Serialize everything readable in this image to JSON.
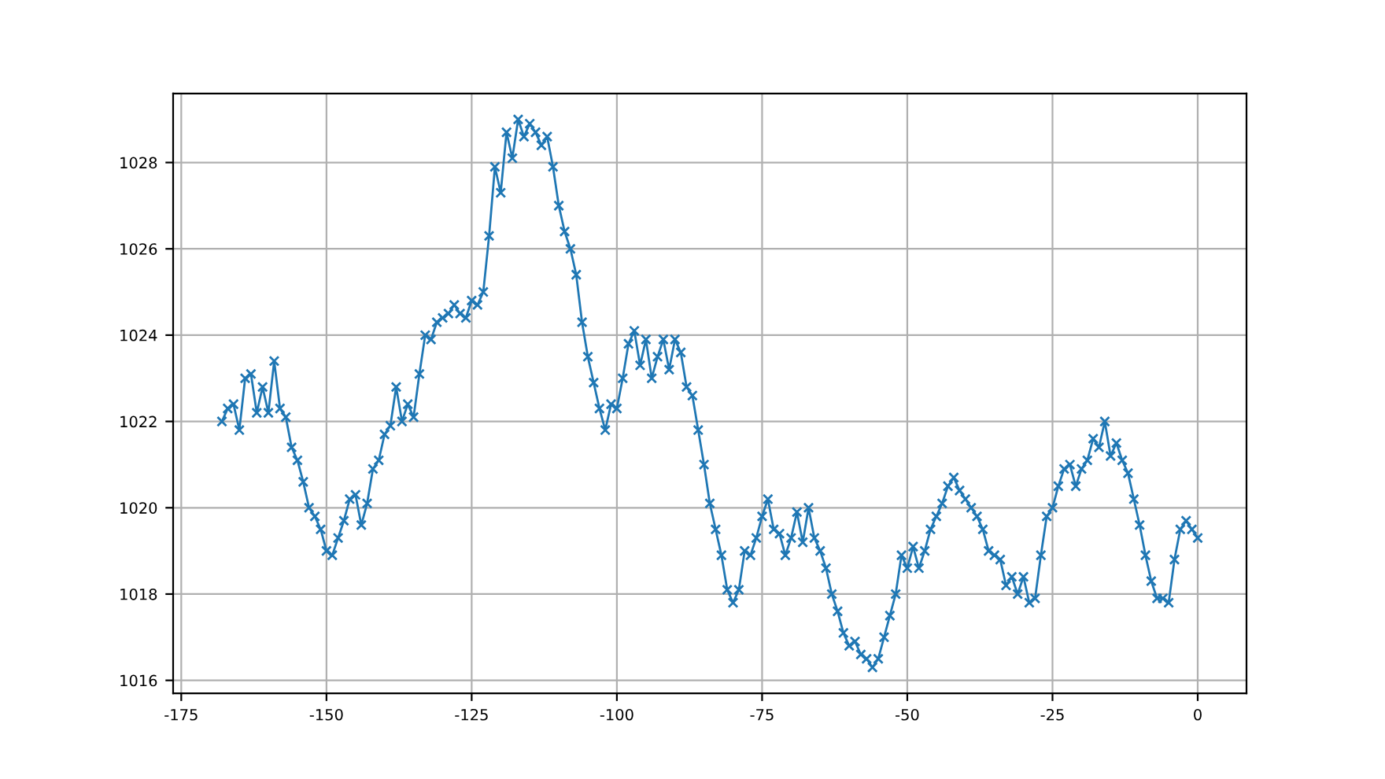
{
  "chart_data": {
    "type": "line",
    "marker": "cross",
    "grid": true,
    "line_style": "solid",
    "xlim": [
      -176.4,
      8.4
    ],
    "xticks": [
      -175,
      -150,
      -125,
      -100,
      -75,
      -50,
      -25,
      0
    ],
    "ylim": [
      1015.7,
      1029.6
    ],
    "yticks": [
      1016,
      1018,
      1020,
      1022,
      1024,
      1026,
      1028
    ],
    "x": [
      -168,
      -167,
      -166,
      -165,
      -164,
      -163,
      -162,
      -161,
      -160,
      -159,
      -158,
      -157,
      -156,
      -155,
      -154,
      -153,
      -152,
      -151,
      -150,
      -149,
      -148,
      -147,
      -146,
      -145,
      -144,
      -143,
      -142,
      -141,
      -140,
      -139,
      -138,
      -137,
      -136,
      -135,
      -134,
      -133,
      -132,
      -131,
      -130,
      -129,
      -128,
      -127,
      -126,
      -125,
      -124,
      -123,
      -122,
      -121,
      -120,
      -119,
      -118,
      -117,
      -116,
      -115,
      -114,
      -113,
      -112,
      -111,
      -110,
      -109,
      -108,
      -107,
      -106,
      -105,
      -104,
      -103,
      -102,
      -101,
      -100,
      -99,
      -98,
      -97,
      -96,
      -95,
      -94,
      -93,
      -92,
      -91,
      -90,
      -89,
      -88,
      -87,
      -86,
      -85,
      -84,
      -83,
      -82,
      -81,
      -80,
      -79,
      -78,
      -77,
      -76,
      -75,
      -74,
      -73,
      -72,
      -71,
      -70,
      -69,
      -68,
      -67,
      -66,
      -65,
      -64,
      -63,
      -62,
      -61,
      -60,
      -59,
      -58,
      -57,
      -56,
      -55,
      -54,
      -53,
      -52,
      -51,
      -50,
      -49,
      -48,
      -47,
      -46,
      -45,
      -44,
      -43,
      -42,
      -41,
      -40,
      -39,
      -38,
      -37,
      -36,
      -35,
      -34,
      -33,
      -32,
      -31,
      -30,
      -29,
      -28,
      -27,
      -26,
      -25,
      -24,
      -23,
      -22,
      -21,
      -20,
      -19,
      -18,
      -17,
      -16,
      -15,
      -14,
      -13,
      -12,
      -11,
      -10,
      -9,
      -8,
      -7,
      -6,
      -5,
      -4,
      -3,
      -2,
      -1,
      0
    ],
    "series": [
      {
        "color": "#1f77b4",
        "values": [
          1022.0,
          1022.3,
          1022.4,
          1021.8,
          1023.0,
          1023.1,
          1022.2,
          1022.8,
          1022.2,
          1023.4,
          1022.3,
          1022.1,
          1021.4,
          1021.1,
          1020.6,
          1020.0,
          1019.8,
          1019.5,
          1019.0,
          1018.9,
          1019.3,
          1019.7,
          1020.2,
          1020.3,
          1019.6,
          1020.1,
          1020.9,
          1021.1,
          1021.7,
          1021.9,
          1022.8,
          1022.0,
          1022.4,
          1022.1,
          1023.1,
          1024.0,
          1023.9,
          1024.3,
          1024.4,
          1024.5,
          1024.7,
          1024.5,
          1024.4,
          1024.8,
          1024.7,
          1025.0,
          1026.3,
          1027.9,
          1027.3,
          1028.7,
          1028.1,
          1029.0,
          1028.6,
          1028.9,
          1028.7,
          1028.4,
          1028.6,
          1027.9,
          1027.0,
          1026.4,
          1026.0,
          1025.4,
          1024.3,
          1023.5,
          1022.9,
          1022.3,
          1021.8,
          1022.4,
          1022.3,
          1023.0,
          1023.8,
          1024.1,
          1023.3,
          1023.9,
          1023.0,
          1023.5,
          1023.9,
          1023.2,
          1023.9,
          1023.6,
          1022.8,
          1022.6,
          1021.8,
          1021.0,
          1020.1,
          1019.5,
          1018.9,
          1018.1,
          1017.8,
          1018.1,
          1019.0,
          1018.9,
          1019.3,
          1019.8,
          1020.2,
          1019.5,
          1019.4,
          1018.9,
          1019.3,
          1019.9,
          1019.2,
          1020.0,
          1019.3,
          1019.0,
          1018.6,
          1018.0,
          1017.6,
          1017.1,
          1016.8,
          1016.9,
          1016.6,
          1016.5,
          1016.3,
          1016.5,
          1017.0,
          1017.5,
          1018.0,
          1018.9,
          1018.6,
          1019.1,
          1018.6,
          1019.0,
          1019.5,
          1019.8,
          1020.1,
          1020.5,
          1020.7,
          1020.4,
          1020.2,
          1020.0,
          1019.8,
          1019.5,
          1019.0,
          1018.9,
          1018.8,
          1018.2,
          1018.4,
          1018.0,
          1018.4,
          1017.8,
          1017.9,
          1018.9,
          1019.8,
          1020.0,
          1020.5,
          1020.9,
          1021.0,
          1020.5,
          1020.9,
          1021.1,
          1021.6,
          1021.4,
          1022.0,
          1021.2,
          1021.5,
          1021.1,
          1020.8,
          1020.2,
          1019.6,
          1018.9,
          1018.3,
          1017.9,
          1017.9,
          1017.8,
          1018.8,
          1019.5,
          1019.7,
          1019.5,
          1019.3
        ]
      }
    ]
  }
}
